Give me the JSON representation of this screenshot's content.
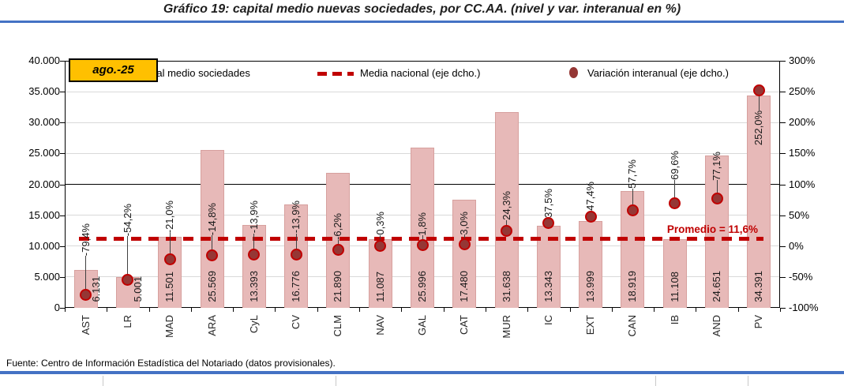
{
  "title": "Gráfico 19: capital medio nuevas sociedades, por CC.AA. (nivel y var. interanual en %)",
  "period_box": "ago.-25",
  "footer": "Fuente: Centro de Información Estadística del Notariado (datos provisionales).",
  "legend": {
    "bar_label": "Capital medio sociedades",
    "line_label": "Media nacional (eje dcho.)",
    "dot_label": "Variación interanual (eje dcho.)"
  },
  "colors": {
    "bar": "#E7B9B8",
    "bar_border": "#D7A09E",
    "dot_fill": "#953735",
    "dot_ring": "#C00000",
    "dashed_line": "#C00000",
    "promedio_text": "#C00000",
    "accent_blue": "#4472C4",
    "period_box_bg": "#FFC000",
    "gridline": "#D9D9D9",
    "axis_black": "#000000"
  },
  "chart_data": {
    "type": "bar",
    "title": "Gráfico 19: capital medio nuevas sociedades, por CC.AA. (nivel y var. interanual en %)",
    "categories": [
      "AST",
      "LR",
      "MAD",
      "ARA",
      "CyL",
      "CV",
      "CLM",
      "NAV",
      "GAL",
      "CAT",
      "MUR",
      "IC",
      "EXT",
      "CAN",
      "IB",
      "AND",
      "PV"
    ],
    "series": [
      {
        "name": "Capital medio sociedades",
        "type": "bar",
        "axis": "left",
        "values": [
          6131,
          5001,
          11501,
          25569,
          13393,
          16776,
          21890,
          11087,
          25996,
          17480,
          31638,
          13343,
          13999,
          18919,
          11108,
          24651,
          34391
        ],
        "value_labels": [
          "6.131",
          "5.001",
          "11.501",
          "25.569",
          "13.393",
          "16.776",
          "21.890",
          "11.087",
          "25.996",
          "17.480",
          "31.638",
          "13.343",
          "13.999",
          "18.919",
          "11.108",
          "24.651",
          "34.391"
        ]
      },
      {
        "name": "Variación interanual (eje dcho.)",
        "type": "scatter",
        "axis": "right",
        "values": [
          -79.4,
          -54.2,
          -21.0,
          -14.8,
          -13.9,
          -13.9,
          -6.2,
          0.3,
          1.8,
          3.0,
          24.3,
          37.5,
          47.4,
          57.7,
          69.6,
          77.1,
          252.0
        ],
        "value_labels": [
          "-79,4%",
          "-54,2%",
          "-21,0%",
          "-14,8%",
          "-13,9%",
          "-13,9%",
          "-6,2%",
          "0,3%",
          "1,8%",
          "3,0%",
          "24,3%",
          "37,5%",
          "47,4%",
          "57,7%",
          "69,6%",
          "77,1%",
          "252,0%"
        ]
      },
      {
        "name": "Media nacional (eje dcho.)",
        "type": "line",
        "axis": "right",
        "value": 11.6,
        "annotation": "Promedio = 11,6%"
      }
    ],
    "left_axis": {
      "min": 0,
      "max": 40000,
      "step": 5000,
      "tick_labels": [
        "0",
        "5.000",
        "10.000",
        "15.000",
        "20.000",
        "25.000",
        "30.000",
        "35.000",
        "40.000"
      ]
    },
    "right_axis": {
      "min": -100,
      "max": 300,
      "step": 50,
      "tick_labels": [
        "-100%",
        "-50%",
        "0%",
        "50%",
        "100%",
        "150%",
        "200%",
        "250%",
        "300%"
      ]
    },
    "grid": true,
    "legend_position": "top"
  }
}
